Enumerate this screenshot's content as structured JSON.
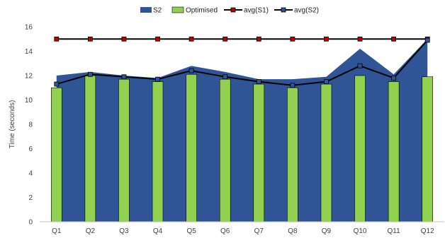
{
  "chart_data": {
    "type": "bar",
    "title": "",
    "xlabel": "",
    "ylabel": "Time (seconds)",
    "ylim": [
      0,
      16
    ],
    "yticks": [
      0,
      2,
      4,
      6,
      8,
      10,
      12,
      14,
      16
    ],
    "grid": false,
    "legend_position": "top",
    "categories": [
      "Q1",
      "Q2",
      "Q3",
      "Q4",
      "Q5",
      "Q6",
      "Q7",
      "Q8",
      "Q9",
      "Q10",
      "Q11",
      "Q12"
    ],
    "series": [
      {
        "name": "S2",
        "kind": "area",
        "color": "#2f5597",
        "values": [
          12.0,
          12.3,
          12.0,
          11.8,
          12.8,
          12.3,
          11.7,
          11.7,
          11.9,
          14.2,
          12.1,
          15.0
        ]
      },
      {
        "name": "Optimised",
        "kind": "bar",
        "color": "#92d050",
        "edge": "#000000",
        "values": [
          11.0,
          12.0,
          11.7,
          11.5,
          12.1,
          11.7,
          11.3,
          11.0,
          11.3,
          12.0,
          11.5,
          11.9
        ]
      },
      {
        "name": "avg(S1)",
        "kind": "line",
        "color": "#000000",
        "marker": "#c00000",
        "values": [
          15.0,
          15.0,
          15.0,
          15.0,
          15.0,
          15.0,
          15.0,
          15.0,
          15.0,
          15.0,
          15.0,
          15.0
        ]
      },
      {
        "name": "avg(S2)",
        "kind": "line",
        "color": "#000000",
        "marker": "#2f5597",
        "values": [
          11.3,
          12.1,
          11.9,
          11.7,
          12.4,
          11.9,
          11.5,
          11.2,
          11.5,
          12.8,
          11.8,
          14.9
        ]
      }
    ]
  }
}
